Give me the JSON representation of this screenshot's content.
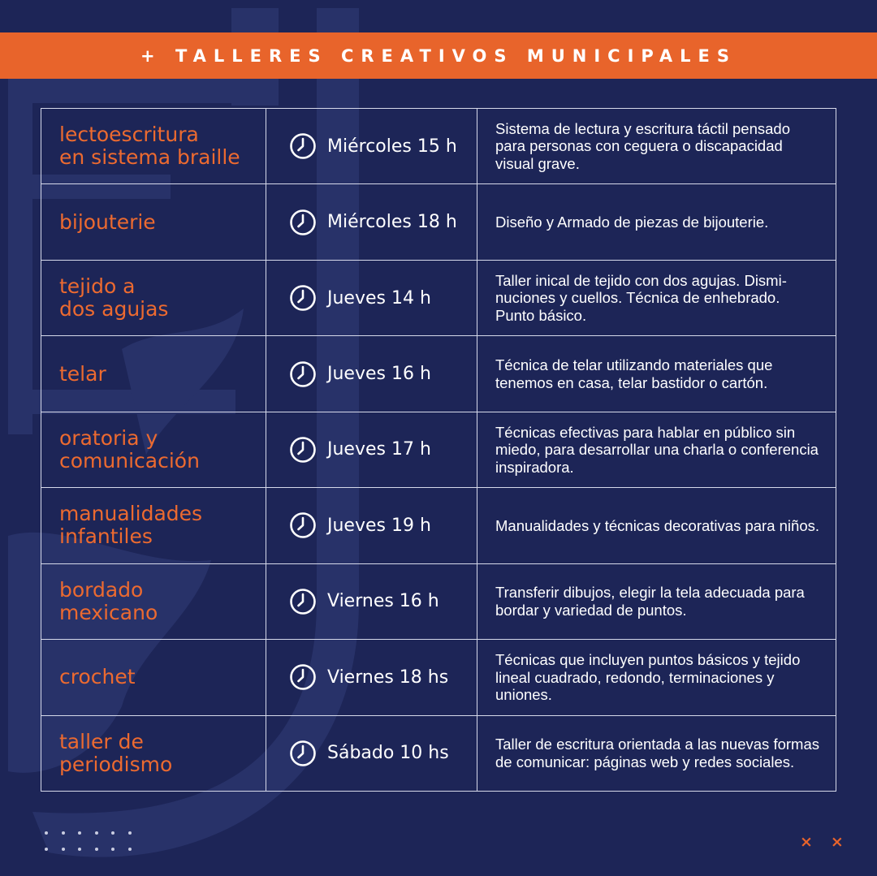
{
  "colors": {
    "background": "#1d2557",
    "accent": "#e8642b",
    "text": "#ffffff",
    "border": "#d6d9ea"
  },
  "header": {
    "title": "+ TALLERES CREATIVOS MUNICIPALES"
  },
  "workshops": [
    {
      "name": "lectoescritura\nen sistema braille",
      "time": "Miércoles 15 h",
      "description": "Sistema de lectura y escritura táctil pensado\npara personas con ceguera o discapacidad\nvisual grave.",
      "icon": "clock-icon"
    },
    {
      "name": "bijouterie",
      "time": "Miércoles 18 h",
      "description": "Diseño y Armado de piezas de bijouterie.",
      "icon": "clock-icon"
    },
    {
      "name": "tejido a\ndos agujas",
      "time": "Jueves 14 h",
      "description": "Taller inical de tejido con dos agujas. Dismi-\nnuciones y cuellos. Técnica de enhebrado.\nPunto básico.",
      "icon": "clock-icon"
    },
    {
      "name": "telar",
      "time": "Jueves 16 h",
      "description": "Técnica de telar utilizando materiales que\ntenemos en casa, telar bastidor o cartón.",
      "icon": "clock-icon"
    },
    {
      "name": "oratoria y\ncomunicación",
      "time": "Jueves 17 h",
      "description": "Técnicas efectivas para hablar en público sin\nmiedo, para desarrollar una charla o conferencia\ninspiradora.",
      "icon": "clock-icon"
    },
    {
      "name": "manualidades\ninfantiles",
      "time": "Jueves 19 h",
      "description": "Manualidades y técnicas decorativas para niños.",
      "icon": "clock-icon"
    },
    {
      "name": "bordado\nmexicano",
      "time": "Viernes 16 h",
      "description": "Transferir dibujos, elegir la tela adecuada para\nbordar y variedad de puntos.",
      "icon": "clock-icon"
    },
    {
      "name": "crochet",
      "time": "Viernes 18 hs",
      "description": "Técnicas que incluyen puntos básicos y tejido\nlineal cuadrado, redondo, terminaciones y uniones.",
      "icon": "clock-icon"
    },
    {
      "name": "taller de\nperiodismo",
      "time": "Sábado 10 hs",
      "description": "Taller de escritura orientada a las nuevas formas\nde comunicar: páginas web y redes sociales.",
      "icon": "clock-icon"
    }
  ],
  "footer": {
    "dots_icon": "dot-grid-decoration",
    "x_marks": [
      "×",
      "×"
    ]
  }
}
